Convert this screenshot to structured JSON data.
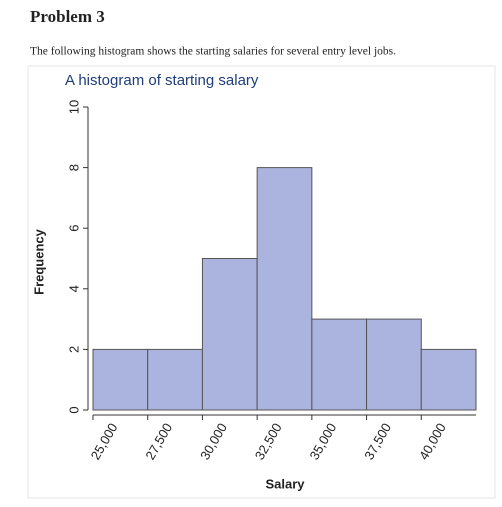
{
  "problem": "Problem 3",
  "text": "The following histogram shows the starting salaries for several entry level jobs.",
  "chart_data": {
    "type": "histogram",
    "title": "A histogram of starting salary",
    "xlabel": "Salary",
    "ylabel": "Frequency",
    "bins": [
      25000,
      27500,
      30000,
      32500,
      35000,
      37500,
      40000,
      42500
    ],
    "values": [
      2,
      2,
      5,
      8,
      3,
      3,
      2
    ],
    "color": "#aab4de",
    "xlim": [
      25000,
      42500
    ],
    "xticks": [
      {
        "value": 25000,
        "label": "25,000"
      },
      {
        "value": 27500,
        "label": "27,500"
      },
      {
        "value": 30000,
        "label": "30,000"
      },
      {
        "value": 32500,
        "label": "32,500"
      },
      {
        "value": 35000,
        "label": "35,000"
      },
      {
        "value": 37500,
        "label": "37,500"
      },
      {
        "value": 40000,
        "label": "40,000"
      }
    ],
    "ylim": [
      0,
      10
    ],
    "yticks": [
      0,
      2,
      4,
      6,
      8,
      10
    ]
  }
}
